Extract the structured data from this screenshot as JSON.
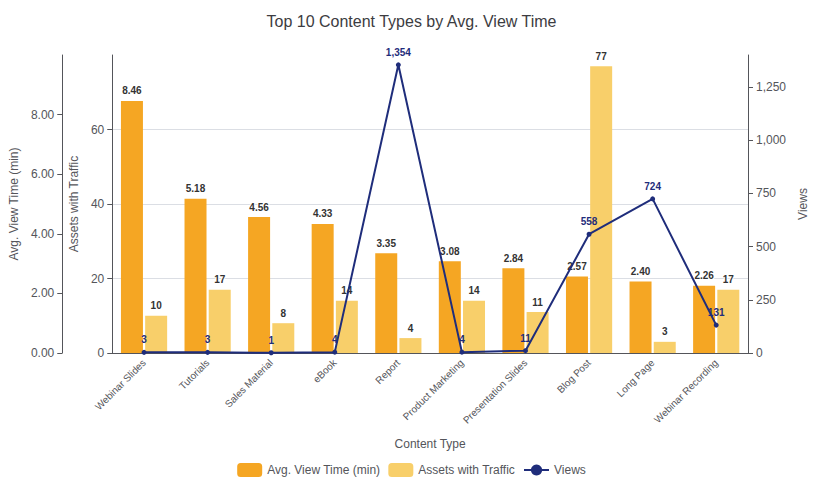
{
  "chart_data": {
    "type": "bar",
    "title": "Top 10 Content Types by Avg. View Time",
    "xlabel": "Content Type",
    "ylabel": "Assets with Traffic",
    "y2label": "Views",
    "y3label": "Avg. View Time (min)",
    "categories": [
      "Webinar Slides",
      "Tutorials",
      "Sales Material",
      "eBook",
      "Report",
      "Product Marketing",
      "Presentation Slides",
      "Blog Post",
      "Long Page",
      "Webinar Recording"
    ],
    "series": [
      {
        "name": "Avg. View Time (min)",
        "type": "bar",
        "color": "#F5A623",
        "axis": "y3",
        "values": [
          8.46,
          5.18,
          4.56,
          4.33,
          3.35,
          3.08,
          2.84,
          2.57,
          2.4,
          2.26
        ],
        "value_labels": [
          "8.46",
          "5.18",
          "4.56",
          "4.33",
          "3.35",
          "3.08",
          "2.84",
          "2.57",
          "2.40",
          "2.26"
        ]
      },
      {
        "name": "Assets with Traffic",
        "type": "bar",
        "color": "#F8CF6A",
        "axis": "y",
        "values": [
          10,
          17,
          8,
          14,
          4,
          14,
          11,
          77,
          3,
          17
        ]
      },
      {
        "name": "Views",
        "type": "line",
        "color": "#1F2D7B",
        "axis": "y2",
        "values": [
          3,
          3,
          1,
          4,
          1354,
          4,
          11,
          558,
          724,
          131
        ],
        "value_labels": [
          "3",
          "3",
          "1",
          "4",
          "1,354",
          "4",
          "11",
          "558",
          "724",
          "131"
        ]
      }
    ],
    "ylim": [
      0,
      80
    ],
    "yticks": [
      0,
      20,
      40,
      60
    ],
    "y2lim": [
      0,
      1400
    ],
    "y2ticks": [
      0,
      250,
      500,
      750,
      {
        "value": 1000,
        "label": "1,000"
      },
      {
        "value": 1250,
        "label": "1,250"
      }
    ],
    "y3lim": [
      0,
      10
    ],
    "y3ticks": [
      {
        "value": 0,
        "label": "0.00"
      },
      {
        "value": 2,
        "label": "2.00"
      },
      {
        "value": 4,
        "label": "4.00"
      },
      {
        "value": 6,
        "label": "6.00"
      },
      {
        "value": 8,
        "label": "8.00"
      }
    ],
    "grid": true,
    "legend": "bottom",
    "data_labels": true
  }
}
